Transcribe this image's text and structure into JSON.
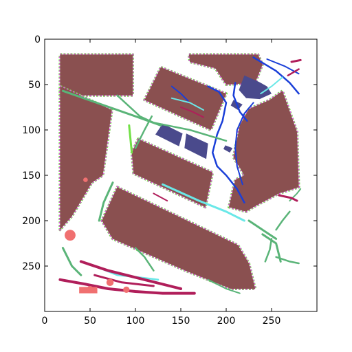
{
  "chart_data": {
    "type": "heatmap",
    "title": "",
    "xlabel": "",
    "ylabel": "",
    "xlim": [
      0,
      300
    ],
    "ylim": [
      300,
      0
    ],
    "y_inverted": true,
    "x_ticks": [
      "0",
      "50",
      "100",
      "150",
      "200",
      "250"
    ],
    "y_ticks": [
      "0",
      "50",
      "100",
      "150",
      "200",
      "250"
    ],
    "grid": false,
    "legend": "none",
    "colors": {
      "building": "#8a5050",
      "road": "#ffffff",
      "grass": "#72e046",
      "vegetation_edge": "#e050e8",
      "water_pool": "#4a4a8c",
      "path_blue": "#1a3fd8",
      "cyan_path": "#6ae8e8",
      "magenta_red": "#b01e5a",
      "salmon": "#f07070",
      "green_line": "#5ab478"
    }
  }
}
